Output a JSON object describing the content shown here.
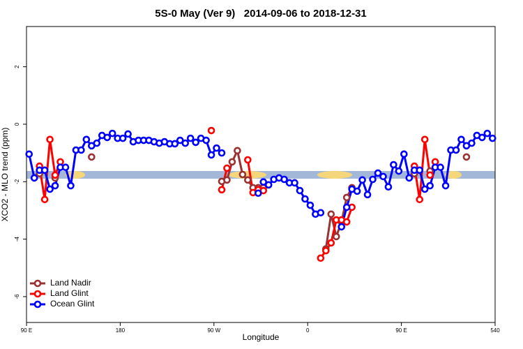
{
  "chart_data": {
    "type": "line",
    "title": "5S-0 May (Ver 9)   2014-09-06 to 2018-12-31",
    "x_label": "Longitude",
    "y_label": "XCO2 - MLO trend (ppm)",
    "xlim": [
      90,
      540
    ],
    "ylim": [
      -6.9,
      3.4
    ],
    "xticks": [
      {
        "value": 90,
        "label": "90 E"
      },
      180,
      {
        "value": 270,
        "label": "90 W"
      },
      {
        "value": 360,
        "label": "0"
      },
      {
        "value": 450,
        "label": "90 E"
      },
      540
    ],
    "yticks": [
      -6,
      -4,
      -2,
      0,
      2
    ],
    "legend": "lower left",
    "x": [
      92.5,
      97.5,
      102.5,
      107.5,
      112.5,
      117.5,
      122.5,
      127.5,
      132.5,
      137.5,
      142.5,
      147.5,
      152.5,
      157.5,
      162.5,
      167.5,
      172.5,
      177.5,
      182.5,
      187.5,
      192.5,
      197.5,
      202.5,
      207.5,
      212.5,
      217.5,
      222.5,
      227.5,
      232.5,
      237.5,
      242.5,
      247.5,
      252.5,
      257.5,
      262.5,
      267.5,
      272.5,
      277.5,
      282.5,
      287.5,
      292.5,
      297.5,
      302.5,
      307.5,
      312.5,
      317.5,
      322.5,
      327.5,
      332.5,
      337.5,
      342.5,
      347.5,
      352.5,
      357.5,
      362.5,
      367.5,
      372.5,
      377.5,
      382.5,
      387.5,
      392.5,
      397.5,
      402.5,
      407.5,
      412.5,
      417.5,
      422.5,
      427.5,
      432.5,
      437.5,
      442.5,
      447.5,
      452.5,
      457.5,
      462.5,
      467.5,
      472.5,
      477.5,
      482.5,
      487.5,
      492.5,
      497.5,
      502.5,
      507.5,
      512.5,
      517.5,
      522.5,
      527.5,
      532.5,
      537.5
    ],
    "series": [
      {
        "name": "Land Nadir",
        "color": "#993333",
        "values": [
          null,
          null,
          -1.72,
          null,
          null,
          -1.87,
          null,
          null,
          null,
          null,
          null,
          null,
          -1.14,
          null,
          null,
          null,
          null,
          null,
          null,
          null,
          null,
          null,
          null,
          null,
          null,
          null,
          null,
          null,
          null,
          null,
          null,
          null,
          null,
          null,
          null,
          null,
          null,
          -1.99,
          -1.94,
          -1.31,
          -0.92,
          -1.75,
          -1.94,
          -2.21,
          -2.21,
          -2.21,
          null,
          null,
          null,
          null,
          null,
          null,
          null,
          null,
          null,
          null,
          null,
          -4.34,
          -3.13,
          -3.91,
          -3.4,
          -2.55,
          -2.21,
          null,
          null,
          null,
          null,
          null,
          null,
          null,
          null,
          null,
          null,
          null,
          -1.72,
          null,
          null,
          -1.63,
          null,
          null,
          null,
          null,
          null,
          null,
          -1.14,
          null,
          null,
          null,
          null,
          null
        ]
      },
      {
        "name": "Land Glint",
        "color": "#ff0000",
        "values": [
          null,
          null,
          -1.46,
          -2.62,
          -0.53,
          -1.77,
          -1.31,
          null,
          null,
          null,
          null,
          null,
          null,
          null,
          null,
          null,
          null,
          null,
          null,
          null,
          null,
          null,
          null,
          null,
          null,
          null,
          null,
          null,
          null,
          null,
          null,
          null,
          null,
          null,
          null,
          -0.22,
          null,
          -2.28,
          -1.53,
          null,
          null,
          null,
          -1.24,
          -2.38,
          -2.28,
          -2.31,
          null,
          null,
          null,
          null,
          null,
          null,
          null,
          null,
          null,
          null,
          -4.66,
          -4.4,
          -4.13,
          -3.33,
          -3.33,
          -3.4,
          -2.89,
          null,
          null,
          null,
          null,
          null,
          null,
          null,
          null,
          null,
          null,
          null,
          -1.46,
          -2.62,
          -0.53,
          -1.77,
          -1.31,
          null,
          null,
          null,
          null,
          null,
          null,
          null,
          null,
          null,
          null,
          null
        ]
      },
      {
        "name": "Ocean Glint",
        "color": "#0000ff",
        "values": [
          -1.04,
          -1.87,
          -1.6,
          -1.6,
          -2.26,
          -2.14,
          -1.5,
          -1.5,
          -2.14,
          -0.9,
          -0.9,
          -0.53,
          -0.75,
          -0.66,
          -0.39,
          -0.46,
          -0.32,
          -0.49,
          -0.49,
          -0.34,
          -0.61,
          -0.56,
          -0.56,
          -0.56,
          -0.61,
          -0.66,
          -0.61,
          -0.68,
          -0.68,
          -0.56,
          -0.66,
          -0.49,
          -0.63,
          -0.49,
          -0.56,
          -1.07,
          -0.83,
          -1.0,
          null,
          null,
          null,
          null,
          null,
          null,
          -2.4,
          -2.01,
          -2.11,
          -1.92,
          -1.87,
          -1.92,
          -2.04,
          -2.04,
          -2.31,
          -2.6,
          -2.82,
          -3.13,
          -3.08,
          null,
          null,
          null,
          -3.57,
          -2.89,
          -2.26,
          -2.33,
          -1.94,
          -2.45,
          -1.92,
          -1.7,
          -1.82,
          -2.18,
          -1.41,
          -1.63,
          -1.04,
          -1.87,
          -1.6,
          -1.6,
          -2.26,
          -2.14,
          -1.5,
          -1.5,
          -2.14,
          -0.9,
          -0.9,
          -0.53,
          -0.75,
          -0.66,
          -0.39,
          -0.46,
          -0.32,
          -0.49
        ]
      }
    ]
  }
}
